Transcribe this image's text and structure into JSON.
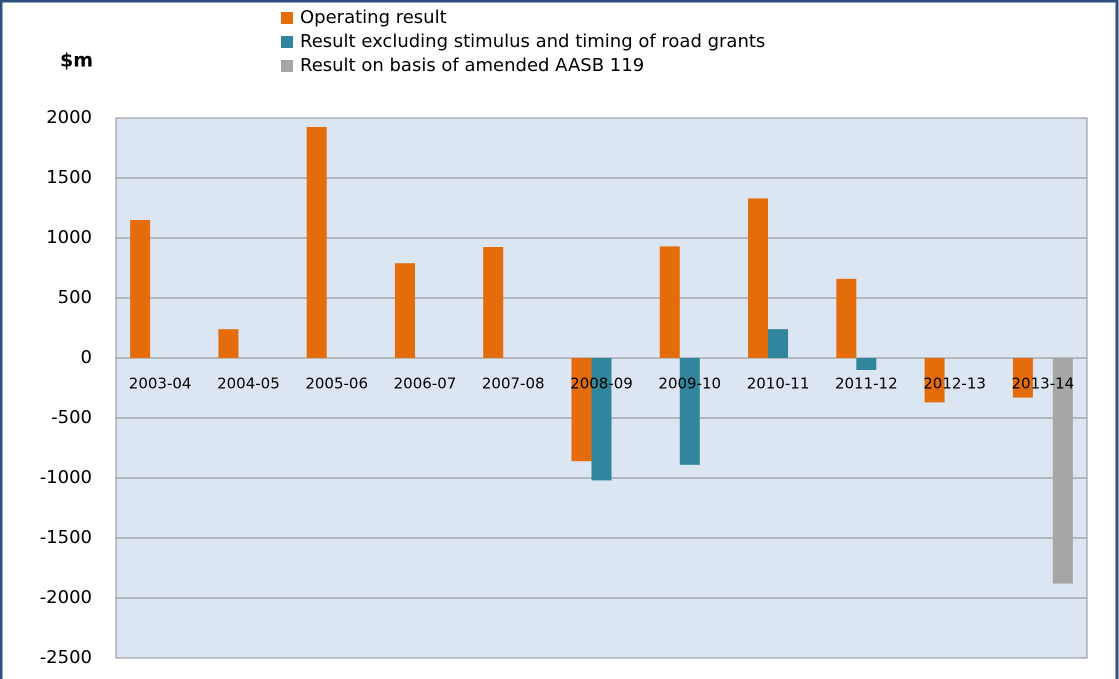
{
  "chart_data": {
    "type": "bar",
    "y_axis_label": "$m",
    "categories": [
      "2003-04",
      "2004-05",
      "2005-06",
      "2006-07",
      "2007-08",
      "2008-09",
      "2009-10",
      "2010-11",
      "2011-12",
      "2012-13",
      "2013-14"
    ],
    "series": [
      {
        "name": "Operating result",
        "color": "#e46c0a",
        "values": [
          1150,
          240,
          1925,
          790,
          925,
          -860,
          930,
          1330,
          660,
          -370,
          -330
        ]
      },
      {
        "name": "Result excluding stimulus and timing of road grants",
        "color": "#31859c",
        "values": [
          null,
          null,
          null,
          null,
          null,
          -1020,
          -890,
          240,
          -100,
          null,
          null
        ]
      },
      {
        "name": "Result on basis of amended AASB 119",
        "color": "#a6a6a6",
        "values": [
          null,
          null,
          null,
          null,
          null,
          null,
          null,
          null,
          null,
          null,
          -1880
        ]
      }
    ],
    "ylim": [
      -2500,
      2000
    ],
    "yticks": [
      -2500,
      -2000,
      -1500,
      -1000,
      -500,
      0,
      500,
      1000,
      1500,
      2000
    ],
    "grid": true,
    "legend": "top"
  }
}
